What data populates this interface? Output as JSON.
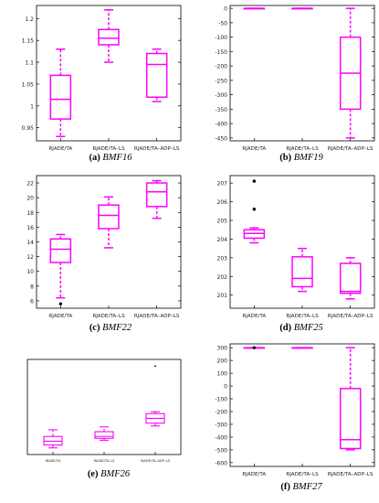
{
  "style": {
    "box_color": "#ff00ff",
    "outlier_color": "#000000",
    "axis_color": "#000000"
  },
  "chart_data": [
    {
      "type": "box",
      "caption_letter": "(a)",
      "caption_name": "BMF16",
      "categories": [
        "RJADE/TA",
        "RJADE/TA–LS",
        "RJADE/TA–ADP–LS"
      ],
      "ylim": [
        0.92,
        1.23
      ],
      "yticks": [
        "0.95",
        "1",
        "1.05",
        "1.1",
        "1.15",
        "1.2"
      ],
      "boxes": [
        {
          "min": 0.93,
          "q1": 0.97,
          "median": 1.015,
          "q3": 1.07,
          "max": 1.13,
          "outliers": []
        },
        {
          "min": 1.1,
          "q1": 1.14,
          "median": 1.155,
          "q3": 1.175,
          "max": 1.22,
          "outliers": []
        },
        {
          "min": 1.01,
          "q1": 1.02,
          "median": 1.095,
          "q3": 1.12,
          "max": 1.13,
          "outliers": []
        }
      ]
    },
    {
      "type": "box",
      "caption_letter": "(b)",
      "caption_name": "BMF19",
      "categories": [
        "RJADE/TA",
        "RJADE/TA–LS",
        "RJADE/TA–ADP–LS"
      ],
      "ylim": [
        -460,
        10
      ],
      "yticks": [
        "0",
        "-50",
        "-100",
        "-150",
        "-200",
        "-250",
        "-300",
        "-350",
        "-400",
        "-450"
      ],
      "boxes": [
        {
          "min": 0,
          "q1": 0,
          "median": 0,
          "q3": 0,
          "max": 0,
          "outliers": []
        },
        {
          "min": 0,
          "q1": 0,
          "median": 0,
          "q3": 0,
          "max": 0,
          "outliers": []
        },
        {
          "min": -450,
          "q1": -350,
          "median": -225,
          "q3": -100,
          "max": 0,
          "outliers": []
        }
      ]
    },
    {
      "type": "box",
      "caption_letter": "(c)",
      "caption_name": "BMF22",
      "categories": [
        "RJADE/TA",
        "RJADE/TA–LS",
        "RJADE/TA–ADP–LS"
      ],
      "ylim": [
        5,
        23
      ],
      "yticks": [
        "6",
        "8",
        "10",
        "12",
        "14",
        "16",
        "18",
        "20",
        "22"
      ],
      "boxes": [
        {
          "min": 6.4,
          "q1": 11.2,
          "median": 13.0,
          "q3": 14.4,
          "max": 15.0,
          "outliers": [
            5.6
          ]
        },
        {
          "min": 13.2,
          "q1": 15.8,
          "median": 17.6,
          "q3": 19.0,
          "max": 20.1,
          "outliers": []
        },
        {
          "min": 17.2,
          "q1": 18.8,
          "median": 20.8,
          "q3": 22.0,
          "max": 22.3,
          "outliers": []
        }
      ]
    },
    {
      "type": "box",
      "caption_letter": "(d)",
      "caption_name": "BMF25",
      "categories": [
        "RJADE/TA",
        "RJADE/TA–LS",
        "RJADE/TA–ADP–LS"
      ],
      "ylim": [
        200.3,
        207.4
      ],
      "yticks": [
        "201",
        "202",
        "203",
        "204",
        "205",
        "206",
        "207"
      ],
      "boxes": [
        {
          "min": 203.8,
          "q1": 204.05,
          "median": 204.3,
          "q3": 204.5,
          "max": 204.6,
          "outliers": [
            205.6,
            207.1
          ]
        },
        {
          "min": 201.2,
          "q1": 201.45,
          "median": 201.9,
          "q3": 203.05,
          "max": 203.5,
          "outliers": []
        },
        {
          "min": 200.8,
          "q1": 201.1,
          "median": 201.2,
          "q3": 202.7,
          "max": 203.0,
          "outliers": []
        }
      ]
    },
    {
      "type": "box",
      "caption_letter": "(e)",
      "caption_name": "BMF26",
      "categories": [
        "RJADE/TA",
        "RJADE/TA–LS",
        "RJADE/TA–ADP–LS"
      ],
      "ylim": [
        0,
        10
      ],
      "yticks": [],
      "boxes": [
        {
          "min": 0.7,
          "q1": 1.0,
          "median": 1.4,
          "q3": 1.9,
          "max": 2.6,
          "outliers": []
        },
        {
          "min": 1.5,
          "q1": 1.7,
          "median": 1.9,
          "q3": 2.4,
          "max": 2.9,
          "outliers": []
        },
        {
          "min": 3.0,
          "q1": 3.3,
          "median": 3.8,
          "q3": 4.3,
          "max": 4.5,
          "outliers": [
            9.3
          ]
        }
      ]
    },
    {
      "type": "box",
      "caption_letter": "(f)",
      "caption_name": "BMF27",
      "categories": [
        "RJADE/TA",
        "RJADE/TA–LS",
        "RJADE/TA–ADP–LS"
      ],
      "ylim": [
        -630,
        330
      ],
      "yticks": [
        "300",
        "200",
        "100",
        "0",
        "-100",
        "-200",
        "-300",
        "-400",
        "-500",
        "-600"
      ],
      "boxes": [
        {
          "min": 300,
          "q1": 300,
          "median": 300,
          "q3": 300,
          "max": 300,
          "outliers": [
            300
          ]
        },
        {
          "min": 300,
          "q1": 300,
          "median": 300,
          "q3": 300,
          "max": 300,
          "outliers": []
        },
        {
          "min": -500,
          "q1": -490,
          "median": -420,
          "q3": -20,
          "max": 300,
          "outliers": []
        }
      ]
    }
  ]
}
